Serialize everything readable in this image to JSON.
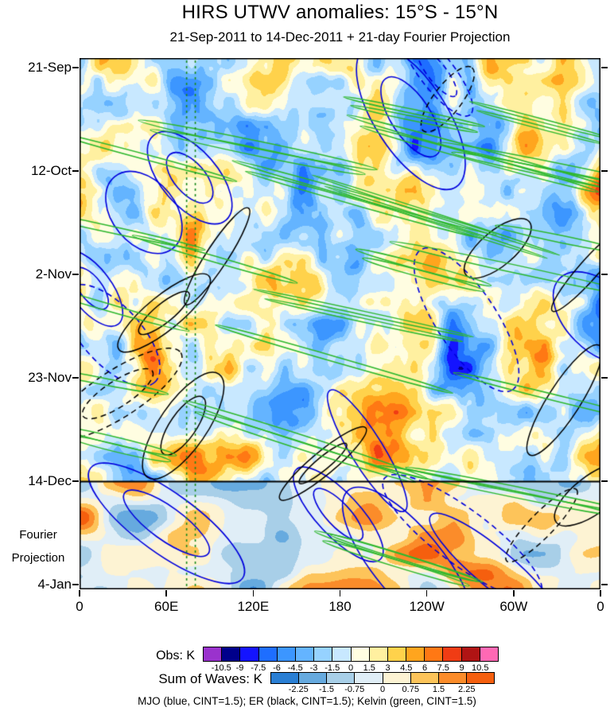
{
  "chart_data": {
    "type": "heatmap",
    "title": "HIRS UTWV anomalies: 15°S - 15°N",
    "subtitle": "21-Sep-2011 to 14-Dec-2011 + 21-day Fourier Projection",
    "x_axis": {
      "ticks": [
        "0",
        "60E",
        "120E",
        "180",
        "120W",
        "60W",
        "0"
      ],
      "range_deg": [
        0,
        360
      ]
    },
    "y_axis": {
      "ticks": [
        "21-Sep",
        "12-Oct",
        "2-Nov",
        "23-Nov",
        "14-Dec",
        "4-Jan"
      ],
      "direction": "time increases downward",
      "tick_interval_days": 21
    },
    "projection_divider": {
      "at_tick": "14-Dec",
      "label_lines": [
        "Fourier",
        "Projection"
      ]
    },
    "reference_lines": {
      "vertical_dashed_green_lons": [
        74,
        80
      ],
      "horizontal_black_at_tick": "14-Dec"
    },
    "colorbars": [
      {
        "label": "Obs: K",
        "boundaries": [
          -10.5,
          -9,
          -7.5,
          -6,
          -4.5,
          -3,
          -1.5,
          0,
          1.5,
          3,
          4.5,
          6,
          7.5,
          9,
          10.5
        ],
        "colors": [
          "#9a32cd",
          "#00008b",
          "#1414ff",
          "#1e6eff",
          "#3c96ff",
          "#64b4ff",
          "#96d2ff",
          "#c8e8ff",
          "#fffde1",
          "#fff0a0",
          "#ffd24b",
          "#ffa51e",
          "#ff7814",
          "#f03c14",
          "#b01414",
          "#ff69b4"
        ]
      },
      {
        "label": "Sum of Waves: K",
        "boundaries": [
          -2.25,
          -1.5,
          -0.75,
          0,
          0.75,
          1.5,
          2.25
        ],
        "colors": [
          "#2a7fd4",
          "#66aadf",
          "#a8cfe8",
          "#e0eef7",
          "#fdf3d3",
          "#fdc45a",
          "#fb8c2a",
          "#f55f0e"
        ]
      }
    ],
    "contours": [
      {
        "name": "MJO",
        "color": "blue",
        "cint_k": 1.5
      },
      {
        "name": "ER",
        "color": "black",
        "cint_k": 1.5
      },
      {
        "name": "Kelvin",
        "color": "green",
        "cint_k": 1.5
      }
    ],
    "caption": "MJO (blue, CINT=1.5); ER (black, CINT=1.5); Kelvin (green, CINT=1.5)"
  }
}
